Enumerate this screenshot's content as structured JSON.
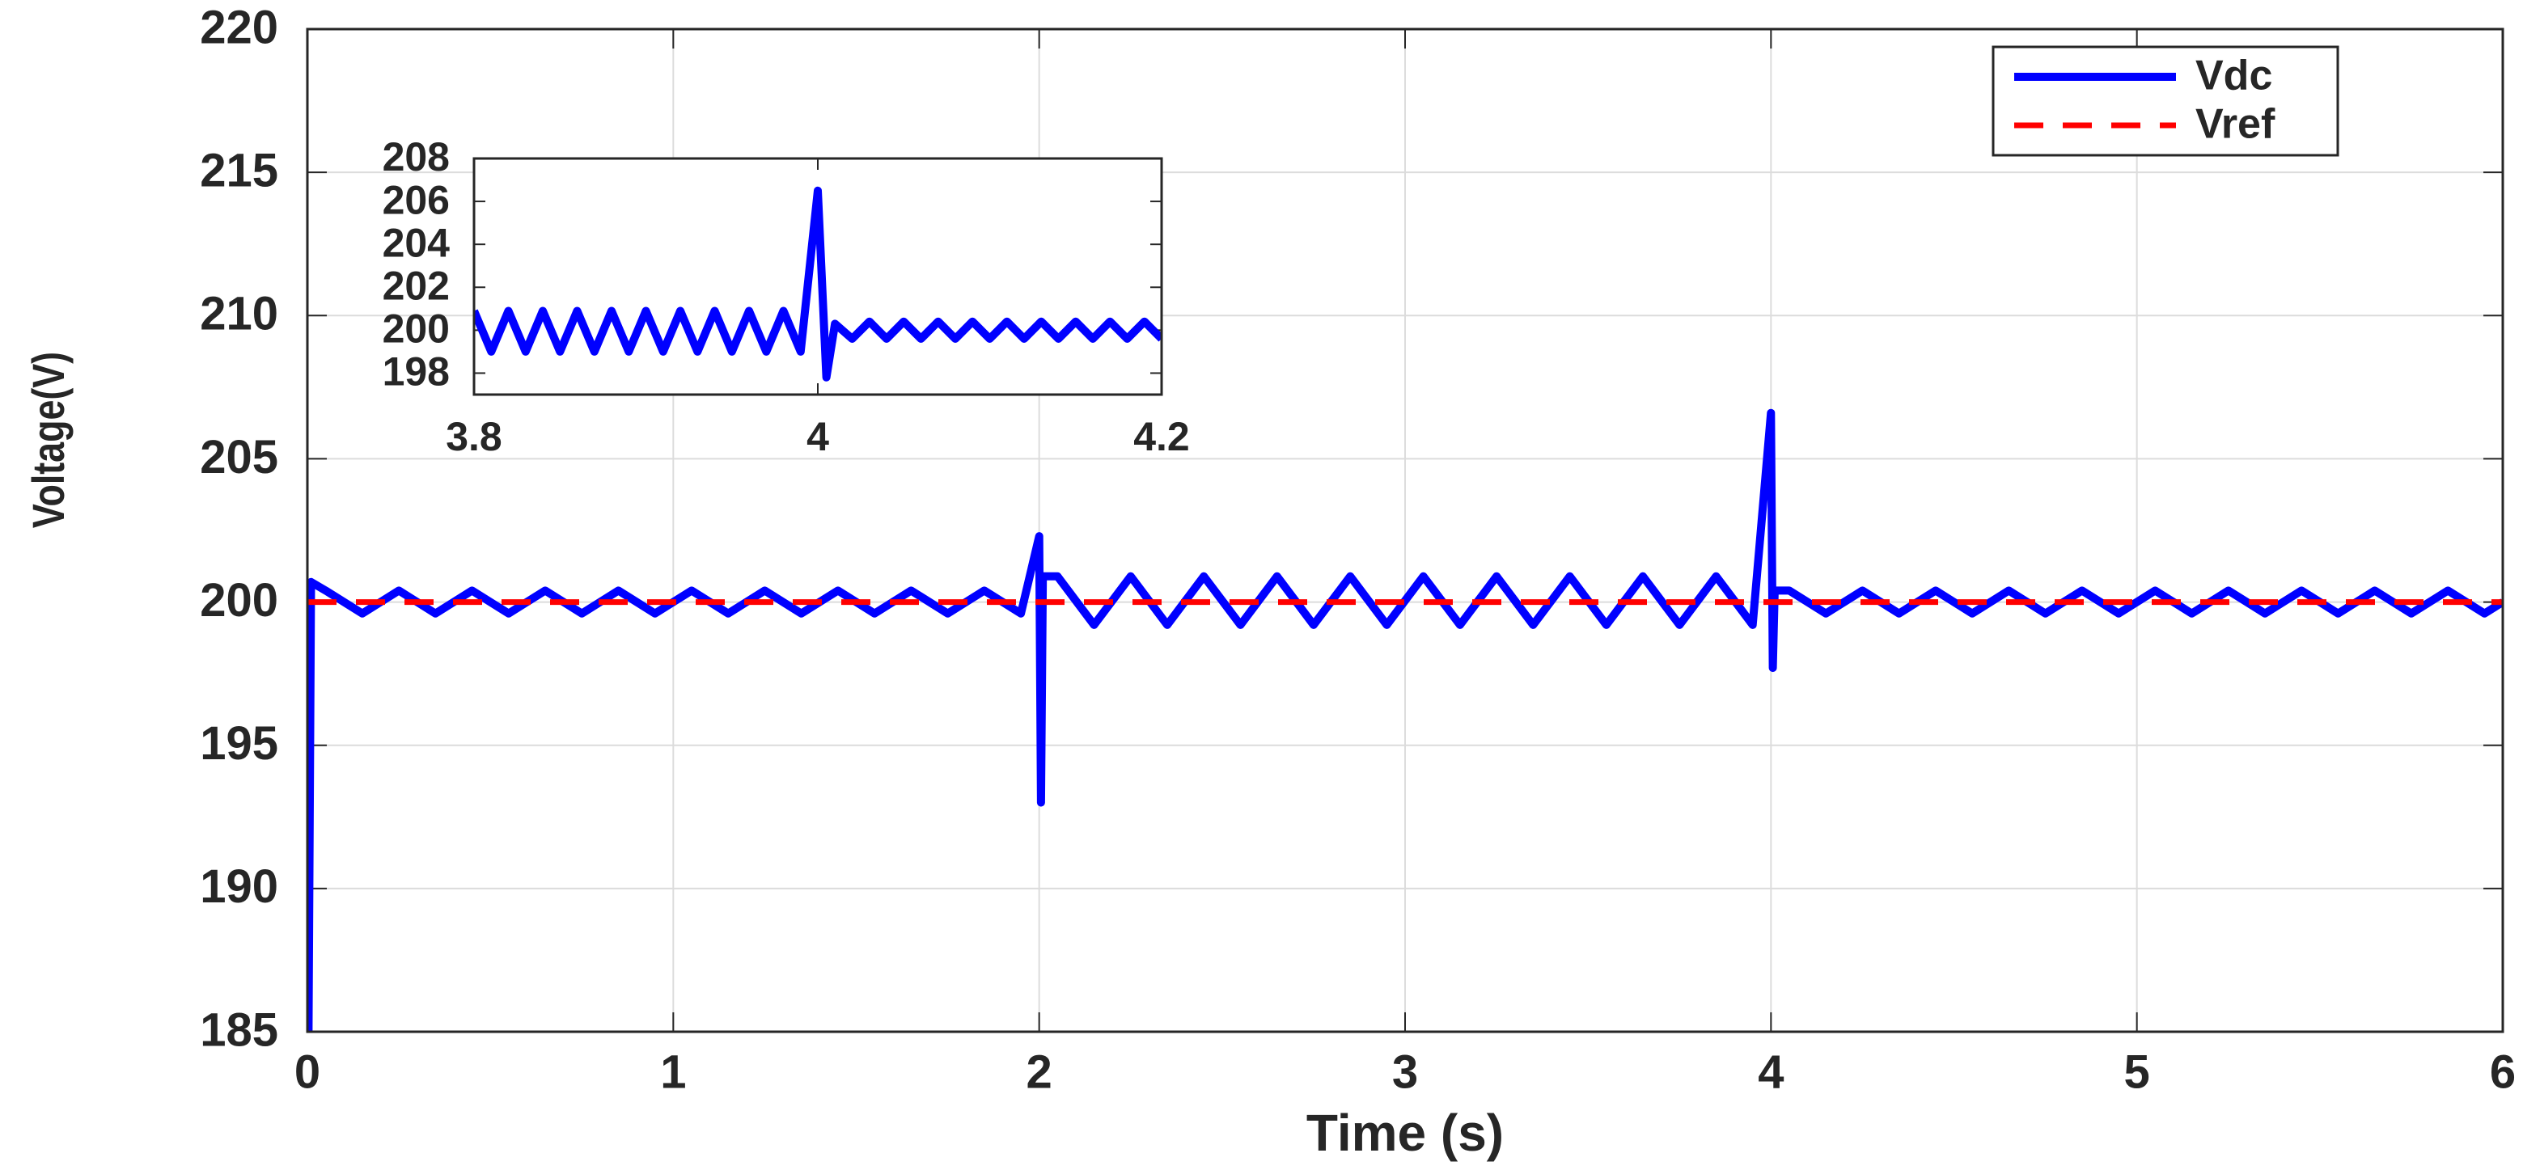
{
  "chart_data": [
    {
      "type": "line",
      "xlabel": "Time (s)",
      "ylabel": "Voltage(V)",
      "xlim": [
        0,
        6
      ],
      "xticks": [
        0,
        1,
        2,
        3,
        4,
        5,
        6
      ],
      "ylim": [
        185,
        220
      ],
      "yticks": [
        185,
        190,
        195,
        200,
        205,
        210,
        215,
        220
      ],
      "grid": true,
      "legend": "northeast",
      "series": [
        {
          "name": "Vdc",
          "color": "#0000ff",
          "linestyle": "solid",
          "x": [
            0,
            0.003,
            0.01,
            0.05,
            0.15,
            0.25,
            0.35,
            0.45,
            0.55,
            0.65,
            0.75,
            0.85,
            0.95,
            1.05,
            1.15,
            1.25,
            1.35,
            1.45,
            1.55,
            1.65,
            1.75,
            1.85,
            1.95,
            2.0,
            2.005,
            2.01,
            2.05,
            2.15,
            2.25,
            2.35,
            2.45,
            2.55,
            2.65,
            2.75,
            2.85,
            2.95,
            3.05,
            3.15,
            3.25,
            3.35,
            3.45,
            3.55,
            3.65,
            3.75,
            3.85,
            3.95,
            4.0,
            4.005,
            4.01,
            4.05,
            4.15,
            4.25,
            4.35,
            4.45,
            4.55,
            4.65,
            4.75,
            4.85,
            4.95,
            5.05,
            5.15,
            5.25,
            5.35,
            5.45,
            5.55,
            5.65,
            5.75,
            5.85,
            5.95,
            6.0
          ],
          "values": [
            200,
            185,
            200.7,
            200.4,
            199.6,
            200.4,
            199.6,
            200.4,
            199.6,
            200.4,
            199.6,
            200.4,
            199.6,
            200.4,
            199.6,
            200.4,
            199.6,
            200.4,
            199.6,
            200.4,
            199.6,
            200.4,
            199.6,
            202.3,
            193,
            200.9,
            200.9,
            199.2,
            200.9,
            199.2,
            200.9,
            199.2,
            200.9,
            199.2,
            200.9,
            199.2,
            200.9,
            199.2,
            200.9,
            199.2,
            200.9,
            199.2,
            200.9,
            199.2,
            200.9,
            199.2,
            206.6,
            197.7,
            200.4,
            200.4,
            199.6,
            200.4,
            199.6,
            200.4,
            199.6,
            200.4,
            199.6,
            200.4,
            199.6,
            200.4,
            199.6,
            200.4,
            199.6,
            200.4,
            199.6,
            200.4,
            199.6,
            200.4,
            199.6,
            200
          ]
        },
        {
          "name": "Vref",
          "color": "#ff0000",
          "linestyle": "dashed",
          "x": [
            0,
            6
          ],
          "values": [
            200,
            200
          ]
        }
      ]
    },
    {
      "type": "line",
      "xlim": [
        3.8,
        4.2
      ],
      "xticks": [
        3.8,
        4,
        4.2
      ],
      "ylim": [
        197,
        208
      ],
      "yticks": [
        198,
        200,
        202,
        204,
        206,
        208
      ],
      "grid": false,
      "series": [
        {
          "color": "#0000ff",
          "linestyle": "solid",
          "x": [
            3.8,
            3.81,
            3.82,
            3.83,
            3.84,
            3.85,
            3.86,
            3.87,
            3.88,
            3.89,
            3.9,
            3.91,
            3.92,
            3.93,
            3.94,
            3.95,
            3.96,
            3.97,
            3.98,
            3.99,
            4.0,
            4.005,
            4.01,
            4.02,
            4.03,
            4.04,
            4.05,
            4.06,
            4.07,
            4.08,
            4.09,
            4.1,
            4.11,
            4.12,
            4.13,
            4.14,
            4.15,
            4.16,
            4.17,
            4.18,
            4.19,
            4.2
          ],
          "values": [
            200.9,
            199.0,
            200.9,
            199.0,
            200.9,
            199.0,
            200.9,
            199.0,
            200.9,
            199.0,
            200.9,
            199.0,
            200.9,
            199.0,
            200.9,
            199.0,
            200.9,
            199.0,
            200.9,
            199.0,
            206.5,
            197.8,
            200.3,
            199.6,
            200.4,
            199.6,
            200.4,
            199.6,
            200.4,
            199.6,
            200.4,
            199.6,
            200.4,
            199.6,
            200.4,
            199.6,
            200.4,
            199.6,
            200.4,
            199.6,
            200.4,
            199.6
          ]
        }
      ]
    }
  ]
}
